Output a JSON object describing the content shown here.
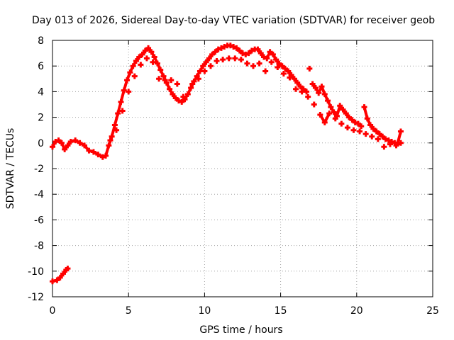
{
  "chart_data": {
    "type": "scatter",
    "title": "Day 013 of 2026, Sidereal Day-to-day VTEC variation (SDTVAR) for receiver geob",
    "xlabel": "GPS time / hours",
    "ylabel": "SDTVAR / TECUs",
    "xlim": [
      0,
      25
    ],
    "ylim": [
      -12,
      8
    ],
    "x_ticks": [
      0,
      5,
      10,
      15,
      20,
      25
    ],
    "y_ticks": [
      -12,
      -10,
      -8,
      -6,
      -4,
      -2,
      0,
      2,
      4,
      6,
      8
    ],
    "x_tick_labels": [
      "0",
      "5",
      "10",
      "15",
      "20",
      "25"
    ],
    "y_tick_labels": [
      "-12",
      "-10",
      "-8",
      "-6",
      "-4",
      "-2",
      "0",
      "2",
      "4",
      "6",
      "8"
    ],
    "grid": true,
    "marker": "plus",
    "series": [
      {
        "name": "SDTVAR",
        "color": "#ff0000",
        "points": [
          [
            0.0,
            -10.8
          ],
          [
            0.3,
            -10.7
          ],
          [
            0.5,
            -10.5
          ],
          [
            0.7,
            -10.2
          ],
          [
            0.9,
            -9.9
          ],
          [
            1.0,
            -9.8
          ],
          [
            0.0,
            -0.3
          ],
          [
            0.2,
            0.1
          ],
          [
            0.4,
            0.2
          ],
          [
            0.6,
            0.0
          ],
          [
            0.8,
            -0.5
          ],
          [
            1.0,
            -0.2
          ],
          [
            1.2,
            0.1
          ],
          [
            1.5,
            0.2
          ],
          [
            1.8,
            0.0
          ],
          [
            2.1,
            -0.2
          ],
          [
            2.4,
            -0.6
          ],
          [
            2.7,
            -0.7
          ],
          [
            3.0,
            -0.9
          ],
          [
            3.3,
            -1.1
          ],
          [
            3.5,
            -1.0
          ],
          [
            3.7,
            -0.2
          ],
          [
            3.9,
            0.5
          ],
          [
            4.1,
            1.4
          ],
          [
            4.3,
            2.3
          ],
          [
            4.5,
            3.2
          ],
          [
            4.7,
            4.1
          ],
          [
            4.9,
            4.9
          ],
          [
            5.1,
            5.5
          ],
          [
            5.3,
            6.0
          ],
          [
            5.5,
            6.4
          ],
          [
            5.7,
            6.7
          ],
          [
            5.9,
            6.9
          ],
          [
            6.1,
            7.2
          ],
          [
            6.3,
            7.4
          ],
          [
            6.5,
            7.1
          ],
          [
            6.7,
            6.7
          ],
          [
            6.9,
            6.2
          ],
          [
            7.1,
            5.7
          ],
          [
            7.3,
            5.2
          ],
          [
            7.5,
            4.7
          ],
          [
            7.7,
            4.2
          ],
          [
            7.9,
            3.8
          ],
          [
            8.1,
            3.5
          ],
          [
            8.3,
            3.3
          ],
          [
            8.5,
            3.2
          ],
          [
            8.7,
            3.4
          ],
          [
            8.9,
            3.8
          ],
          [
            9.1,
            4.3
          ],
          [
            9.3,
            4.8
          ],
          [
            9.5,
            5.2
          ],
          [
            9.7,
            5.6
          ],
          [
            9.9,
            6.0
          ],
          [
            10.1,
            6.3
          ],
          [
            10.3,
            6.6
          ],
          [
            10.5,
            6.9
          ],
          [
            10.7,
            7.1
          ],
          [
            10.9,
            7.3
          ],
          [
            11.1,
            7.4
          ],
          [
            11.3,
            7.5
          ],
          [
            11.5,
            7.6
          ],
          [
            11.7,
            7.6
          ],
          [
            11.9,
            7.5
          ],
          [
            12.1,
            7.4
          ],
          [
            12.3,
            7.2
          ],
          [
            12.5,
            7.0
          ],
          [
            12.7,
            6.9
          ],
          [
            12.9,
            7.0
          ],
          [
            13.1,
            7.2
          ],
          [
            13.3,
            7.3
          ],
          [
            13.5,
            7.3
          ],
          [
            13.7,
            7.0
          ],
          [
            13.9,
            6.7
          ],
          [
            14.1,
            6.6
          ],
          [
            14.3,
            7.1
          ],
          [
            14.5,
            6.9
          ],
          [
            14.7,
            6.5
          ],
          [
            14.9,
            6.2
          ],
          [
            15.1,
            6.0
          ],
          [
            15.3,
            5.8
          ],
          [
            15.5,
            5.6
          ],
          [
            15.7,
            5.3
          ],
          [
            15.9,
            5.0
          ],
          [
            16.1,
            4.7
          ],
          [
            16.3,
            4.4
          ],
          [
            16.5,
            4.2
          ],
          [
            16.7,
            4.0
          ],
          [
            16.9,
            5.8
          ],
          [
            17.1,
            4.6
          ],
          [
            17.3,
            4.3
          ],
          [
            17.5,
            3.9
          ],
          [
            17.7,
            4.4
          ],
          [
            17.9,
            3.8
          ],
          [
            18.1,
            3.3
          ],
          [
            18.3,
            2.8
          ],
          [
            18.5,
            2.4
          ],
          [
            18.7,
            2.1
          ],
          [
            18.9,
            2.9
          ],
          [
            19.1,
            2.6
          ],
          [
            19.3,
            2.3
          ],
          [
            19.5,
            2.0
          ],
          [
            19.7,
            1.8
          ],
          [
            19.9,
            1.6
          ],
          [
            20.1,
            1.5
          ],
          [
            20.3,
            1.3
          ],
          [
            20.5,
            2.8
          ],
          [
            20.7,
            1.9
          ],
          [
            20.9,
            1.4
          ],
          [
            21.1,
            1.1
          ],
          [
            21.3,
            0.9
          ],
          [
            21.5,
            0.7
          ],
          [
            21.7,
            0.5
          ],
          [
            21.9,
            0.3
          ],
          [
            22.1,
            0.2
          ],
          [
            22.3,
            0.1
          ],
          [
            22.5,
            0.0
          ],
          [
            22.7,
            0.0
          ],
          [
            22.9,
            0.9
          ],
          [
            3.8,
            0.2
          ],
          [
            4.2,
            1.0
          ],
          [
            4.6,
            2.5
          ],
          [
            5.0,
            4.0
          ],
          [
            5.4,
            5.2
          ],
          [
            5.8,
            6.1
          ],
          [
            6.2,
            6.6
          ],
          [
            6.6,
            6.3
          ],
          [
            7.0,
            5.0
          ],
          [
            7.4,
            4.9
          ],
          [
            7.8,
            4.9
          ],
          [
            8.2,
            4.6
          ],
          [
            8.6,
            3.6
          ],
          [
            9.2,
            4.6
          ],
          [
            9.6,
            5.0
          ],
          [
            10.0,
            5.6
          ],
          [
            10.4,
            6.0
          ],
          [
            10.8,
            6.4
          ],
          [
            11.2,
            6.5
          ],
          [
            11.6,
            6.6
          ],
          [
            12.0,
            6.6
          ],
          [
            12.4,
            6.5
          ],
          [
            12.8,
            6.2
          ],
          [
            13.2,
            6.0
          ],
          [
            13.6,
            6.2
          ],
          [
            14.0,
            5.6
          ],
          [
            14.4,
            6.3
          ],
          [
            14.8,
            5.9
          ],
          [
            15.2,
            5.4
          ],
          [
            15.6,
            5.1
          ],
          [
            16.0,
            4.2
          ],
          [
            16.4,
            4.0
          ],
          [
            16.8,
            3.6
          ],
          [
            17.2,
            3.0
          ],
          [
            17.6,
            2.2
          ],
          [
            17.9,
            1.6
          ],
          [
            18.2,
            2.3
          ],
          [
            18.6,
            1.9
          ],
          [
            19.0,
            1.5
          ],
          [
            19.4,
            1.2
          ],
          [
            19.8,
            1.0
          ],
          [
            20.2,
            0.9
          ],
          [
            20.6,
            0.7
          ],
          [
            21.0,
            0.5
          ],
          [
            21.4,
            0.3
          ],
          [
            21.8,
            -0.3
          ],
          [
            22.2,
            -0.1
          ],
          [
            22.6,
            -0.2
          ],
          [
            22.9,
            0.0
          ]
        ]
      }
    ]
  }
}
